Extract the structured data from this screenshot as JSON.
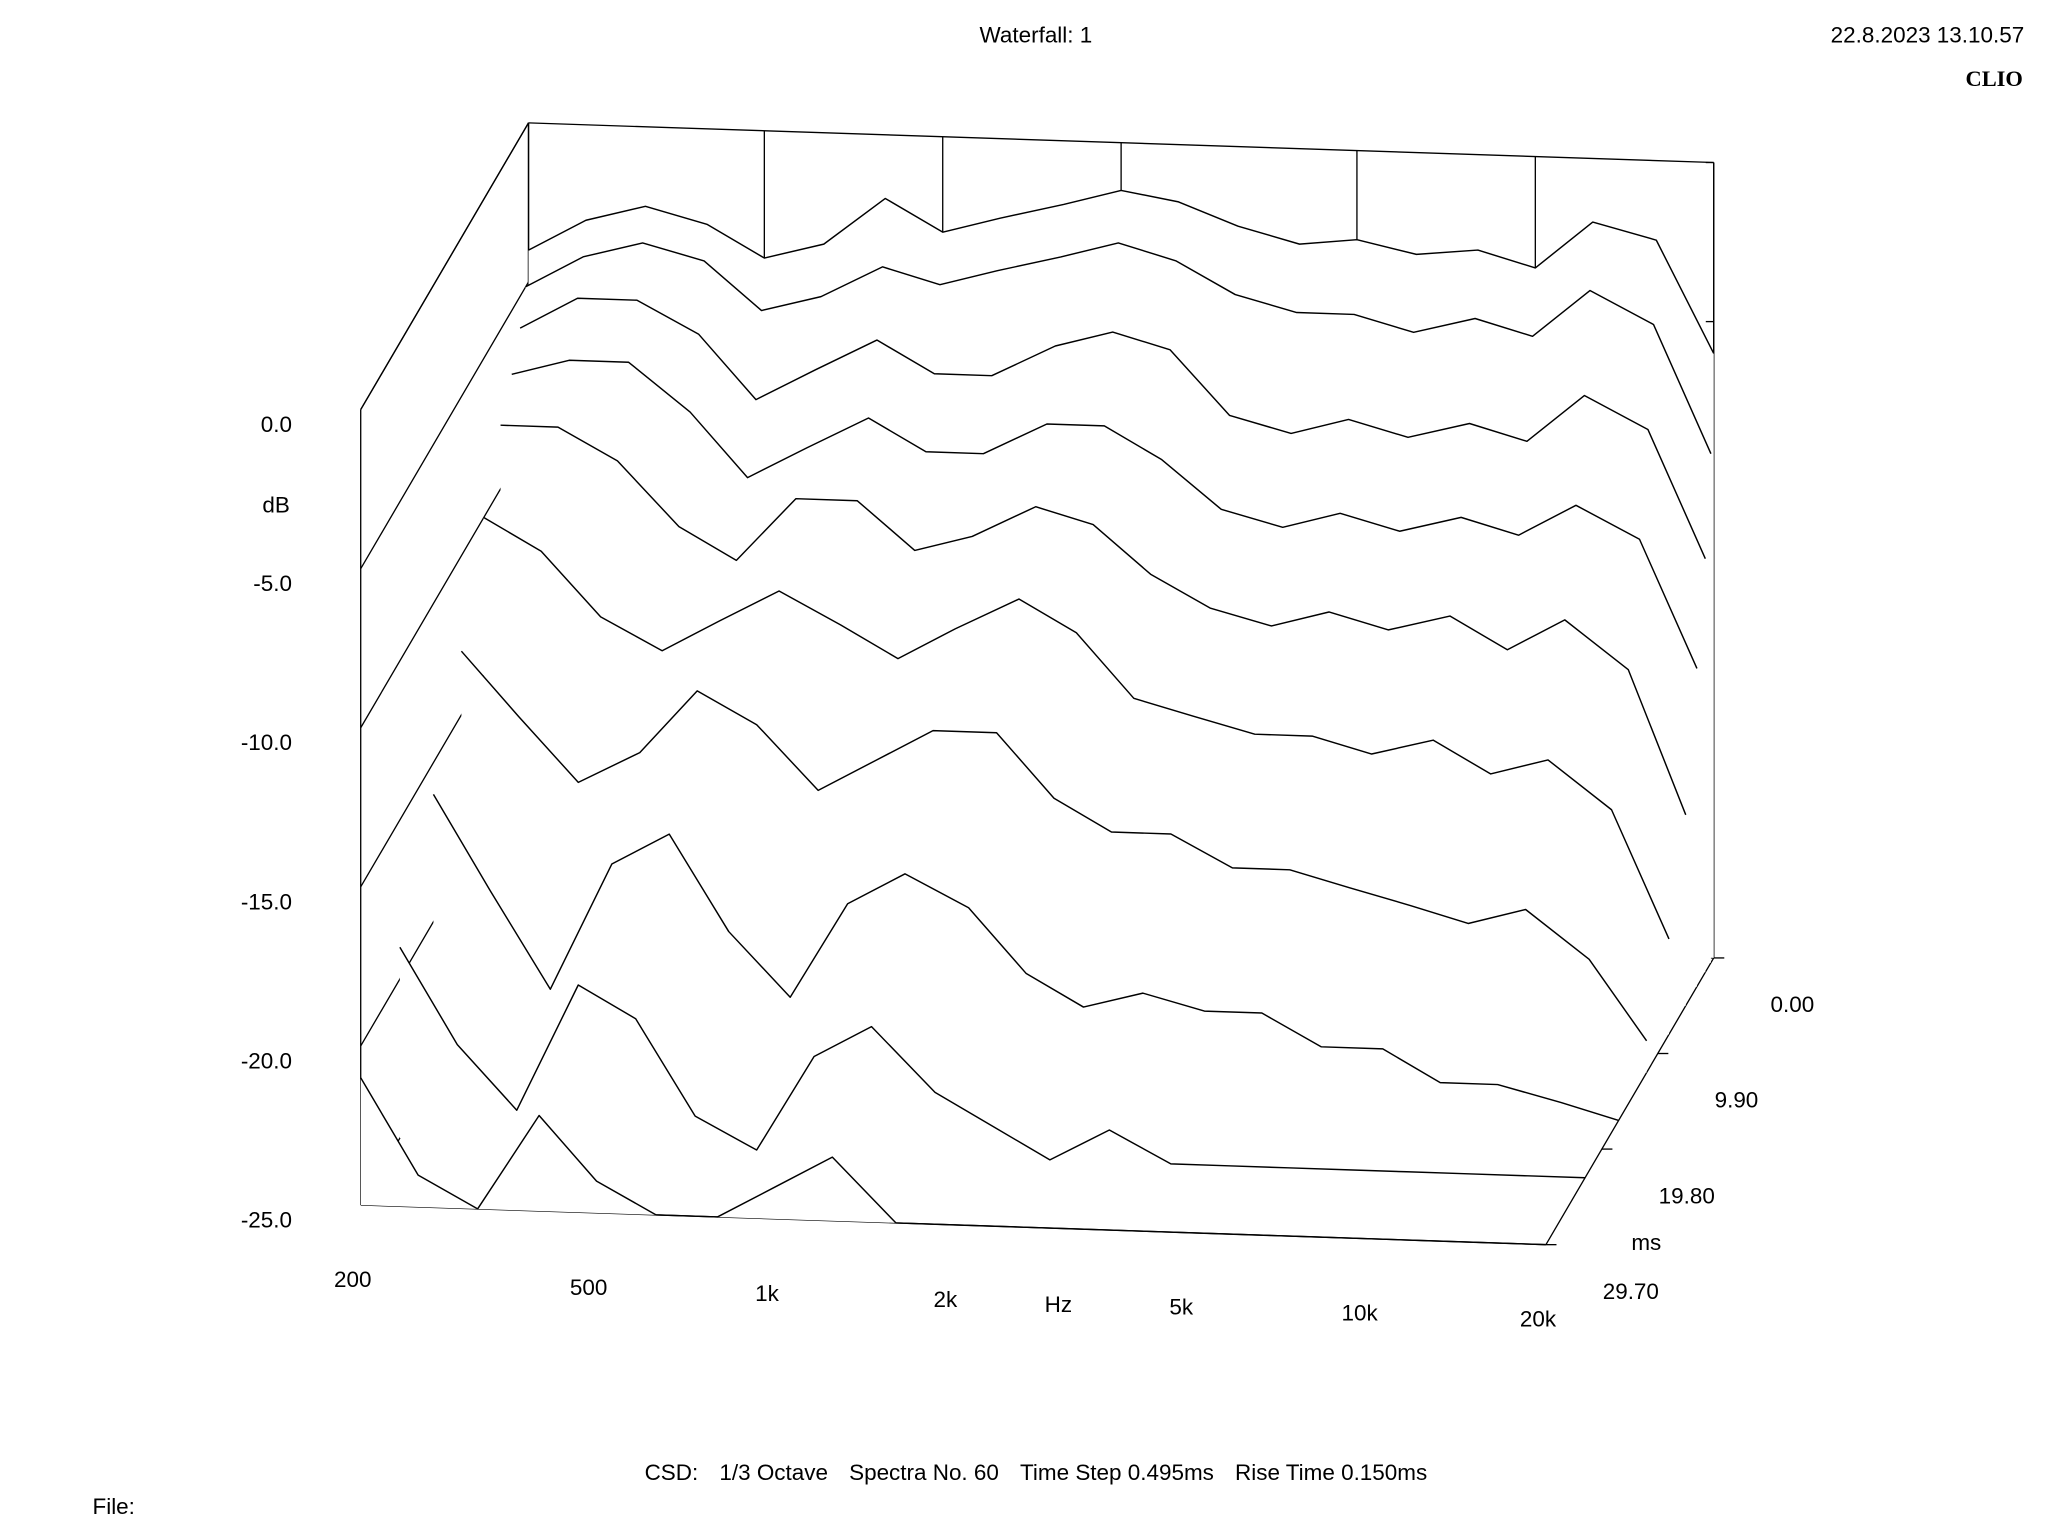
{
  "chart_data": {
    "type": "waterfall",
    "title": "Waterfall: 1",
    "timestamp": "22.8.2023 13.10.57",
    "brand": "CLIO",
    "y_label": "dB",
    "x_label": "Hz",
    "z_label": "ms",
    "info": [
      "CSD:",
      "1/3 Octave",
      "Spectra No. 60",
      "Time Step 0.495ms",
      "Rise Time 0.150ms"
    ],
    "file_label": "File:",
    "log_x": true,
    "xlim": [
      200,
      20000
    ],
    "ylim": [
      -25,
      0
    ],
    "zlim": [
      0,
      29.7
    ],
    "xticks": [
      200,
      500,
      {
        "value": 1000,
        "label": "1k"
      },
      {
        "value": 2000,
        "label": "2k"
      },
      {
        "value": 5000,
        "label": "5k"
      },
      {
        "value": 10000,
        "label": "10k"
      },
      {
        "value": 20000,
        "label": "20k"
      }
    ],
    "yticks": [
      {
        "value": 0,
        "label": "0.0"
      },
      {
        "value": -5,
        "label": "-5.0"
      },
      {
        "value": -10,
        "label": "-10.0"
      },
      {
        "value": -15,
        "label": "-15.0"
      },
      {
        "value": -20,
        "label": "-20.0"
      },
      {
        "value": -25,
        "label": "-25.0"
      }
    ],
    "zticks": [
      {
        "value": 0,
        "label": "0.00"
      },
      {
        "value": 9.9,
        "label": "9.90"
      },
      {
        "value": 19.8,
        "label": "19.80"
      },
      {
        "value": 29.7,
        "label": "29.70"
      }
    ],
    "x": [
      200,
      250,
      315,
      400,
      500,
      630,
      800,
      1000,
      1250,
      1600,
      2000,
      2500,
      3150,
      4000,
      5000,
      6300,
      8000,
      10000,
      12500,
      16000,
      20000
    ],
    "spectra": [
      {
        "time": 0,
        "values": [
          -4,
          -3,
          -2.5,
          -3,
          -4,
          -3.5,
          -2,
          -3,
          -2.5,
          -2,
          -1.5,
          -1.8,
          -2.5,
          -3,
          -2.8,
          -3.2,
          -3,
          -3.5,
          -2,
          -2.5,
          -6
        ]
      },
      {
        "time": 0.495,
        "values": [
          -5,
          -4,
          -3.5,
          -4,
          -5.5,
          -5,
          -4,
          -4.5,
          -4,
          -3.5,
          -3,
          -3.5,
          -4.5,
          -5,
          -5,
          -5.5,
          -5,
          -5.5,
          -4,
          -5,
          -9
        ]
      },
      {
        "time": 1.485,
        "values": [
          -6,
          -5,
          -5,
          -6,
          -8,
          -7,
          -6,
          -7,
          -7,
          -6,
          -5.5,
          -6,
          -8,
          -8.5,
          -8,
          -8.5,
          -8,
          -8.5,
          -7,
          -8,
          -12
        ]
      },
      {
        "time": 2.97,
        "values": [
          -7,
          -6.5,
          -6.5,
          -8,
          -10,
          -9,
          -8,
          -9,
          -9,
          -8,
          -8,
          -9,
          -10.5,
          -11,
          -10.5,
          -11,
          -10.5,
          -11,
          -10,
          -11,
          -15
        ]
      },
      {
        "time": 4.95,
        "values": [
          -8,
          -8,
          -9,
          -11,
          -12,
          -10,
          -10,
          -11.5,
          -11,
          -10,
          -10.5,
          -12,
          -13,
          -13.5,
          -13,
          -13.5,
          -13,
          -14,
          -13,
          -14.5,
          -19
        ]
      },
      {
        "time": 7.92,
        "values": [
          -10,
          -11,
          -13,
          -14,
          -13,
          -12,
          -13,
          -14,
          -13,
          -12,
          -13,
          -15,
          -15.5,
          -16,
          -16,
          -16.5,
          -16,
          -17,
          -16.5,
          -18,
          -22
        ]
      },
      {
        "time": 11.88,
        "values": [
          -13,
          -15,
          -17,
          -16,
          -14,
          -15,
          -17,
          -16,
          -15,
          -15,
          -17,
          -18,
          -18,
          -19,
          -19,
          -19.5,
          -20,
          -20.5,
          -20,
          -21.5,
          -24
        ]
      },
      {
        "time": 16.83,
        "values": [
          -16,
          -19,
          -22,
          -18,
          -17,
          -20,
          -22,
          -19,
          -18,
          -19,
          -21,
          -22,
          -21.5,
          -22,
          -22,
          -23,
          -23,
          -24,
          -24,
          -24.5,
          -25
        ]
      },
      {
        "time": 22.77,
        "values": [
          -19,
          -22,
          -24,
          -20,
          -21,
          -24,
          -25,
          -22,
          -21,
          -23,
          -24,
          -25,
          -24,
          -25,
          -25,
          -25,
          -25,
          -25,
          -25,
          -25,
          -25
        ]
      },
      {
        "time": 29.7,
        "values": [
          -21,
          -24,
          -25,
          -22,
          -24,
          -25,
          -25,
          -24,
          -23,
          -25,
          -25,
          -25,
          -25,
          -25,
          -25,
          -25,
          -25,
          -25,
          -25,
          -25,
          -25
        ]
      }
    ]
  }
}
